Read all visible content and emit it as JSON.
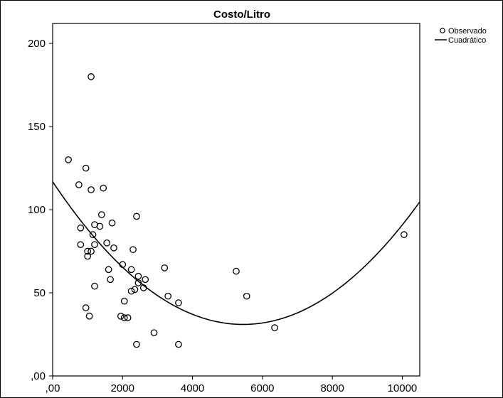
{
  "chart_data": {
    "type": "scatter",
    "title": "Costo/Litro",
    "xlabel": "",
    "ylabel": "",
    "xlim": [
      0,
      10500
    ],
    "ylim": [
      0,
      212
    ],
    "xticks": [
      0,
      2000,
      4000,
      6000,
      8000,
      10000
    ],
    "xtick_labels": [
      ",00",
      "2000",
      "4000",
      "6000",
      "8000",
      "10000"
    ],
    "yticks": [
      0,
      50,
      100,
      150,
      200
    ],
    "ytick_labels": [
      ",00",
      "50",
      "100",
      "150",
      "200"
    ],
    "grid": false,
    "legend_position": "outside-top-right",
    "legend": [
      {
        "label": "Observado",
        "marker": "open-circle"
      },
      {
        "label": "Cuadrático",
        "marker": "line"
      }
    ],
    "series": [
      {
        "name": "Observado",
        "kind": "scatter",
        "points": [
          [
            450,
            130
          ],
          [
            750,
            115
          ],
          [
            950,
            125
          ],
          [
            1100,
            180
          ],
          [
            1100,
            112
          ],
          [
            1450,
            113
          ],
          [
            800,
            89
          ],
          [
            800,
            79
          ],
          [
            1000,
            75
          ],
          [
            1000,
            72
          ],
          [
            1100,
            75
          ],
          [
            1150,
            85
          ],
          [
            1200,
            91
          ],
          [
            1200,
            79
          ],
          [
            1350,
            90
          ],
          [
            1400,
            97
          ],
          [
            1550,
            80
          ],
          [
            1700,
            92
          ],
          [
            1750,
            77
          ],
          [
            1600,
            64
          ],
          [
            1650,
            58
          ],
          [
            1200,
            54
          ],
          [
            950,
            41
          ],
          [
            1050,
            36
          ],
          [
            1950,
            36
          ],
          [
            2050,
            35
          ],
          [
            2150,
            35
          ],
          [
            2000,
            67
          ],
          [
            2050,
            45
          ],
          [
            2250,
            64
          ],
          [
            2300,
            76
          ],
          [
            2250,
            51
          ],
          [
            2350,
            52
          ],
          [
            2400,
            96
          ],
          [
            2450,
            60
          ],
          [
            2450,
            56
          ],
          [
            2600,
            53
          ],
          [
            2650,
            58
          ],
          [
            2400,
            19
          ],
          [
            2900,
            26
          ],
          [
            3200,
            65
          ],
          [
            3300,
            48
          ],
          [
            3600,
            44
          ],
          [
            3600,
            19
          ],
          [
            5250,
            63
          ],
          [
            5550,
            48
          ],
          [
            6350,
            29
          ],
          [
            10050,
            85
          ]
        ]
      },
      {
        "name": "Cuadrático",
        "kind": "curve",
        "fit": {
          "form": "vertex",
          "vertex_x": 5450,
          "vertex_y": 31,
          "a": 2.89e-06
        }
      }
    ]
  }
}
